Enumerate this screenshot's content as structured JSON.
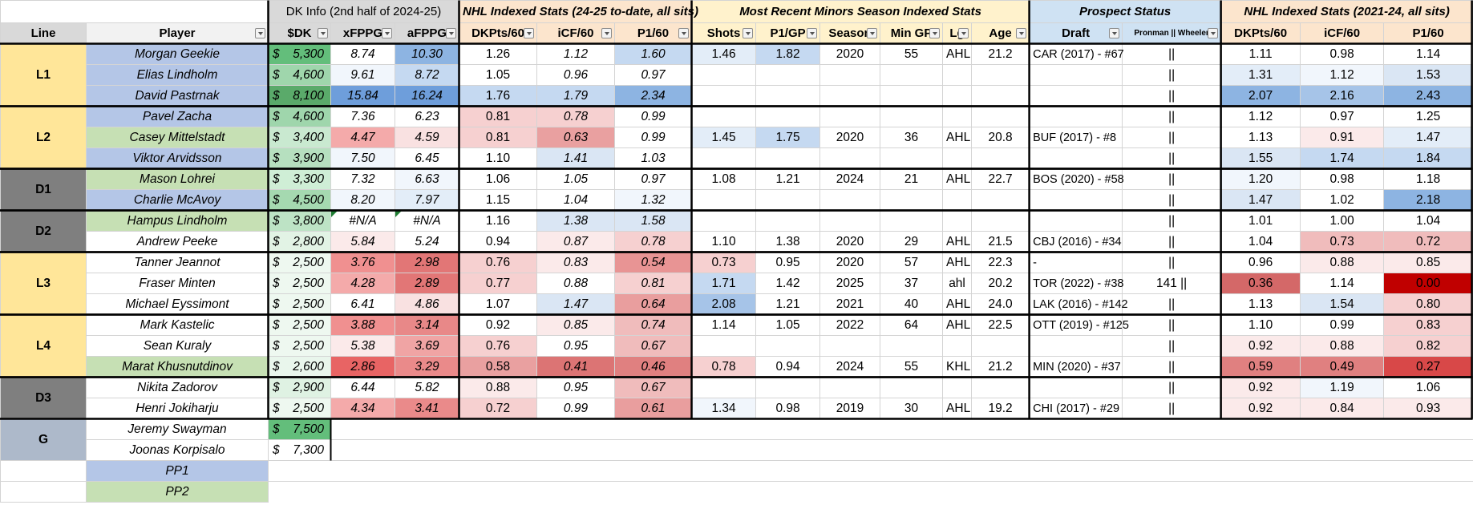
{
  "sheet": {
    "header_groups": [
      {
        "text": "",
        "span": 2,
        "bg": "#ffffff"
      },
      {
        "text": "DK Info (2nd half of 2024-25)",
        "span": 3,
        "bg": "#d9d9d9"
      },
      {
        "text": "NHL Indexed Stats (24-25 to-date, all sits)",
        "span": 3,
        "bg": "#fce5cd"
      },
      {
        "text": "Most Recent Minors Season Indexed Stats",
        "span": 6,
        "bg": "#fff2cc"
      },
      {
        "text": "Prospect Status",
        "span": 2,
        "bg": "#cfe2f3"
      },
      {
        "text": "NHL Indexed Stats (2021-24, all sits)",
        "span": 3,
        "bg": "#fce5cd"
      }
    ],
    "columns": [
      "Line",
      "Player",
      "$DK",
      "xFPPG",
      "aFPPG",
      "DKPts/60",
      "iCF/60",
      "P1/60",
      "Shots",
      "P1/GP",
      "Season",
      "Min GP",
      "Lg",
      "Age",
      "Draft",
      "Pronman || Wheeler",
      "DKPts/60",
      "iCF/60",
      "P1/60"
    ],
    "col_bg": [
      "#d9d9d9",
      "#f2f2f2",
      "#d9d9d9",
      "#d9d9d9",
      "#d9d9d9",
      "#fce5cd",
      "#fce5cd",
      "#fce5cd",
      "#fff2cc",
      "#fff2cc",
      "#fff2cc",
      "#fff2cc",
      "#fff2cc",
      "#fff2cc",
      "#cfe2f3",
      "#cfe2f3",
      "#fce5cd",
      "#fce5cd",
      "#fce5cd"
    ],
    "filter_cols": [
      1,
      2,
      3,
      4,
      5,
      6,
      7,
      8,
      9,
      10,
      11,
      12,
      13,
      14,
      15
    ],
    "italic_cols": [
      3,
      4,
      6,
      7
    ],
    "line_colors": {
      "yellow": "#ffe699",
      "dark": "#7f7f7f",
      "gray": "#adb9ca",
      "white": "#ffffff"
    },
    "player_colors": {
      "blue": "#b4c6e7",
      "green": "#c6e0b4",
      "white": "#ffffff"
    },
    "lines": [
      {
        "label": "L1",
        "rows": 3,
        "color": "yellow",
        "border": true
      },
      {
        "label": "L2",
        "rows": 3,
        "color": "yellow",
        "border": true
      },
      {
        "label": "D1",
        "rows": 2,
        "color": "dark",
        "border": true
      },
      {
        "label": "D2",
        "rows": 2,
        "color": "dark",
        "border": true
      },
      {
        "label": "L3",
        "rows": 3,
        "color": "yellow",
        "border": true
      },
      {
        "label": "L4",
        "rows": 3,
        "color": "yellow",
        "border": true
      },
      {
        "label": "D3",
        "rows": 2,
        "color": "dark",
        "border": true
      },
      {
        "label": "G",
        "rows": 2,
        "color": "gray",
        "border": false
      },
      {
        "label": "",
        "rows": 1,
        "color": "white",
        "border": false
      },
      {
        "label": "",
        "rows": 1,
        "color": "white",
        "border": false
      }
    ],
    "rows": [
      {
        "player": "Morgan Geekie",
        "pc": "blue",
        "dk": "5,300",
        "dkbg": "#63be7b",
        "cells": [
          "8.74",
          "10.30",
          "1.26",
          "1.12",
          "1.60",
          "1.46",
          "1.82",
          "2020",
          "55",
          "AHL",
          "21.2",
          "CAR (2017) - #67",
          "||",
          "1.11",
          "0.98",
          "1.14"
        ],
        "bgs": [
          "#ffffff",
          "#8db4e2",
          "#ffffff",
          "#ffffff",
          "#c5d9f1",
          "#e3edf8",
          "#c5d9f1",
          "",
          "",
          "",
          "",
          "",
          "",
          "#ffffff",
          "#ffffff",
          "#ffffff"
        ]
      },
      {
        "player": "Elias Lindholm",
        "pc": "blue",
        "dk": "4,600",
        "dkbg": "#9fd6ac",
        "cells": [
          "9.61",
          "8.72",
          "1.05",
          "0.96",
          "0.97",
          "",
          "",
          "",
          "",
          "",
          "",
          "",
          "||",
          "1.31",
          "1.12",
          "1.53"
        ],
        "bgs": [
          "#f1f6fc",
          "#c5d9f1",
          "#ffffff",
          "#ffffff",
          "#ffffff",
          "",
          "",
          "",
          "",
          "",
          "",
          "",
          "",
          "#e3edf8",
          "#f1f6fc",
          "#dae6f4"
        ]
      },
      {
        "player": "David Pastrnak",
        "pc": "blue",
        "dk": "8,100",
        "dkbg": "#5aaa6a",
        "cells": [
          "15.84",
          "16.24",
          "1.76",
          "1.79",
          "2.34",
          "",
          "",
          "",
          "",
          "",
          "",
          "",
          "||",
          "2.07",
          "2.16",
          "2.43"
        ],
        "bgs": [
          "#6e9edb",
          "#6e9edb",
          "#c5d9f1",
          "#c5d9f1",
          "#8db4e2",
          "",
          "",
          "",
          "",
          "",
          "",
          "",
          "",
          "#8db4e2",
          "#a6c4e8",
          "#8db4e2"
        ]
      },
      {
        "player": "Pavel Zacha",
        "pc": "blue",
        "dk": "4,600",
        "dkbg": "#9fd6ac",
        "cells": [
          "7.36",
          "6.23",
          "0.81",
          "0.78",
          "0.99",
          "",
          "",
          "",
          "",
          "",
          "",
          "",
          "||",
          "1.12",
          "0.97",
          "1.25"
        ],
        "bgs": [
          "#ffffff",
          "#ffffff",
          "#f6d0d0",
          "#f6d0d0",
          "#ffffff",
          "",
          "",
          "",
          "",
          "",
          "",
          "",
          "",
          "#ffffff",
          "#ffffff",
          "#ffffff"
        ]
      },
      {
        "player": "Casey Mittelstadt",
        "pc": "green",
        "dk": "3,400",
        "dkbg": "#c9e9d0",
        "cells": [
          "4.47",
          "4.59",
          "0.81",
          "0.63",
          "0.99",
          "1.45",
          "1.75",
          "2020",
          "36",
          "AHL",
          "20.8",
          "BUF (2017) - #8",
          "||",
          "1.13",
          "0.91",
          "1.47"
        ],
        "bgs": [
          "#f4aaaa",
          "#f9e1e1",
          "#f6d0d0",
          "#e9a0a0",
          "#ffffff",
          "#e3edf8",
          "#c5d9f1",
          "",
          "",
          "",
          "",
          "",
          "",
          "#ffffff",
          "#fbeaea",
          "#e3edf8"
        ]
      },
      {
        "player": "Viktor Arvidsson",
        "pc": "blue",
        "dk": "3,900",
        "dkbg": "#b6e0bf",
        "cells": [
          "7.50",
          "6.45",
          "1.10",
          "1.41",
          "1.03",
          "",
          "",
          "",
          "",
          "",
          "",
          "",
          "||",
          "1.55",
          "1.74",
          "1.84"
        ],
        "bgs": [
          "#f1f6fc",
          "#ffffff",
          "#ffffff",
          "#dae6f4",
          "#ffffff",
          "",
          "",
          "",
          "",
          "",
          "",
          "",
          "",
          "#dae6f4",
          "#c5d9f1",
          "#c5d9f1"
        ]
      },
      {
        "player": "Mason Lohrei",
        "pc": "green",
        "dk": "3,300",
        "dkbg": "#cfeed6",
        "cells": [
          "7.32",
          "6.63",
          "1.06",
          "1.05",
          "0.97",
          "1.08",
          "1.21",
          "2024",
          "21",
          "AHL",
          "22.7",
          "BOS (2020) - #58",
          "||",
          "1.20",
          "0.98",
          "1.18"
        ],
        "bgs": [
          "#ffffff",
          "#f1f6fc",
          "#ffffff",
          "#ffffff",
          "#ffffff",
          "",
          "",
          "",
          "",
          "",
          "",
          "",
          "",
          "#f1f6fc",
          "#ffffff",
          "#ffffff"
        ]
      },
      {
        "player": "Charlie McAvoy",
        "pc": "blue",
        "dk": "4,500",
        "dkbg": "#a5d9b0",
        "cells": [
          "8.20",
          "7.97",
          "1.15",
          "1.04",
          "1.32",
          "",
          "",
          "",
          "",
          "",
          "",
          "",
          "||",
          "1.47",
          "1.02",
          "2.18"
        ],
        "bgs": [
          "#f1f6fc",
          "#e3edf8",
          "#ffffff",
          "#ffffff",
          "#f1f6fc",
          "",
          "",
          "",
          "",
          "",
          "",
          "",
          "",
          "#dae6f4",
          "#ffffff",
          "#8db4e2"
        ]
      },
      {
        "player": "Hampus Lindholm",
        "pc": "green",
        "dk": "3,800",
        "dkbg": "#bde3c5",
        "cells": [
          "#N/A",
          "#N/A",
          "1.16",
          "1.38",
          "1.58",
          "",
          "",
          "",
          "",
          "",
          "",
          "",
          "||",
          "1.01",
          "1.00",
          "1.04"
        ],
        "bgs": [
          "#ffffff",
          "#ffffff",
          "#ffffff",
          "#dae6f4",
          "#dae6f4",
          "",
          "",
          "",
          "",
          "",
          "",
          "",
          "",
          "#ffffff",
          "#ffffff",
          "#ffffff"
        ]
      },
      {
        "player": "Andrew Peeke",
        "pc": "white",
        "dk": "2,800",
        "dkbg": "#e2f3e5",
        "cells": [
          "5.84",
          "5.24",
          "0.94",
          "0.87",
          "0.78",
          "1.10",
          "1.38",
          "2020",
          "29",
          "AHL",
          "21.5",
          "CBJ (2016) - #34",
          "||",
          "1.04",
          "0.73",
          "0.72"
        ],
        "bgs": [
          "#fbeaea",
          "#ffffff",
          "#ffffff",
          "#fbeaea",
          "#f6d0d0",
          "",
          "",
          "",
          "",
          "",
          "",
          "",
          "",
          "#ffffff",
          "#f0bcbc",
          "#f0bcbc"
        ]
      },
      {
        "player": "Tanner Jeannot",
        "pc": "white",
        "dk": "2,500",
        "dkbg": "#eef8f0",
        "cells": [
          "3.76",
          "2.98",
          "0.76",
          "0.83",
          "0.54",
          "0.73",
          "0.95",
          "2020",
          "57",
          "AHL",
          "22.3",
          "-",
          "||",
          "0.96",
          "0.88",
          "0.85"
        ],
        "bgs": [
          "#f09090",
          "#e27676",
          "#f6d0d0",
          "#fbeaea",
          "#e89494",
          "#f6d0d0",
          "",
          "",
          "",
          "",
          "",
          "",
          "",
          "#ffffff",
          "#fbeaea",
          "#fbeaea"
        ]
      },
      {
        "player": "Fraser Minten",
        "pc": "white",
        "dk": "2,500",
        "dkbg": "#eef8f0",
        "cells": [
          "4.28",
          "2.89",
          "0.77",
          "0.88",
          "0.81",
          "1.71",
          "1.42",
          "2025",
          "37",
          "ahl",
          "20.2",
          "TOR (2022) - #38",
          "141 ||",
          "0.36",
          "1.14",
          "0.00"
        ],
        "bgs": [
          "#f4aaaa",
          "#e27676",
          "#f6d0d0",
          "#ffffff",
          "#f6d0d0",
          "#c5d9f1",
          "",
          "",
          "",
          "",
          "",
          "",
          "",
          "#d46868",
          "#ffffff",
          "#c00000"
        ]
      },
      {
        "player": "Michael Eyssimont",
        "pc": "white",
        "dk": "2,500",
        "dkbg": "#eef8f0",
        "cells": [
          "6.41",
          "4.86",
          "1.07",
          "1.47",
          "0.64",
          "2.08",
          "1.21",
          "2021",
          "40",
          "AHL",
          "24.0",
          "LAK (2016) - #142",
          "||",
          "1.13",
          "1.54",
          "0.80"
        ],
        "bgs": [
          "#ffffff",
          "#f9e1e1",
          "#ffffff",
          "#dae6f4",
          "#e99e9e",
          "#a6c4e8",
          "",
          "",
          "",
          "",
          "",
          "",
          "",
          "#ffffff",
          "#dae6f4",
          "#f6d0d0"
        ]
      },
      {
        "player": "Mark Kastelic",
        "pc": "white",
        "dk": "2,500",
        "dkbg": "#eef8f0",
        "cells": [
          "3.88",
          "3.14",
          "0.92",
          "0.85",
          "0.74",
          "1.14",
          "1.05",
          "2022",
          "64",
          "AHL",
          "22.5",
          "OTT (2019) - #125",
          "||",
          "1.10",
          "0.99",
          "0.83"
        ],
        "bgs": [
          "#f09090",
          "#e88888",
          "#ffffff",
          "#fbeaea",
          "#f0bcbc",
          "",
          "",
          "",
          "",
          "",
          "",
          "",
          "",
          "#ffffff",
          "#ffffff",
          "#f6d0d0"
        ]
      },
      {
        "player": "Sean Kuraly",
        "pc": "white",
        "dk": "2,500",
        "dkbg": "#eef8f0",
        "cells": [
          "5.38",
          "3.69",
          "0.76",
          "0.95",
          "0.67",
          "",
          "",
          "",
          "",
          "",
          "",
          "",
          "||",
          "0.92",
          "0.88",
          "0.82"
        ],
        "bgs": [
          "#fbeaea",
          "#f0a4a4",
          "#f6d0d0",
          "#ffffff",
          "#f0bcbc",
          "",
          "",
          "",
          "",
          "",
          "",
          "",
          "",
          "#fbeaea",
          "#fbeaea",
          "#f6d0d0"
        ]
      },
      {
        "player": "Marat Khusnutdinov",
        "pc": "green",
        "dk": "2,600",
        "dkbg": "#e9f6ec",
        "cells": [
          "2.86",
          "3.29",
          "0.58",
          "0.41",
          "0.46",
          "0.78",
          "0.94",
          "2024",
          "55",
          "KHL",
          "21.2",
          "MIN (2020) - #37",
          "||",
          "0.59",
          "0.49",
          "0.27"
        ],
        "bgs": [
          "#e86464",
          "#ea8a8a",
          "#e9a0a0",
          "#dc7474",
          "#e08080",
          "#f6d0d0",
          "",
          "",
          "",
          "",
          "",
          "",
          "",
          "#e08080",
          "#e08080",
          "#d84848"
        ]
      },
      {
        "player": "Nikita Zadorov",
        "pc": "white",
        "dk": "2,900",
        "dkbg": "#dff2e3",
        "cells": [
          "6.44",
          "5.82",
          "0.88",
          "0.95",
          "0.67",
          "",
          "",
          "",
          "",
          "",
          "",
          "",
          "||",
          "0.92",
          "1.19",
          "1.06"
        ],
        "bgs": [
          "#ffffff",
          "#ffffff",
          "#fbeaea",
          "#ffffff",
          "#f0bcbc",
          "",
          "",
          "",
          "",
          "",
          "",
          "",
          "",
          "#fbeaea",
          "#f1f6fc",
          "#ffffff"
        ]
      },
      {
        "player": "Henri Jokiharju",
        "pc": "white",
        "dk": "2,500",
        "dkbg": "#eef8f0",
        "cells": [
          "4.34",
          "3.41",
          "0.72",
          "0.99",
          "0.61",
          "1.34",
          "0.98",
          "2019",
          "30",
          "AHL",
          "19.2",
          "CHI (2017) - #29",
          "||",
          "0.92",
          "0.84",
          "0.93"
        ],
        "bgs": [
          "#f4aaaa",
          "#ea8a8a",
          "#f6d0d0",
          "#ffffff",
          "#e99e9e",
          "#f1f6fc",
          "",
          "",
          "",
          "",
          "",
          "",
          "",
          "#fbeaea",
          "#fbeaea",
          "#fbeaea"
        ]
      },
      {
        "player": "Jeremy Swayman",
        "pc": "white",
        "dk": "7,500",
        "dkbg": "#63be7b",
        "cells": []
      },
      {
        "player": "Joonas Korpisalo",
        "pc": "white",
        "dk": "7,300",
        "dkbg": "#ffffff",
        "cells": []
      },
      {
        "player": "PP1",
        "pc": "blue",
        "dk": null,
        "cells": []
      },
      {
        "player": "PP2",
        "pc": "green",
        "dk": null,
        "cells": []
      }
    ],
    "dollar_sign": "$"
  }
}
